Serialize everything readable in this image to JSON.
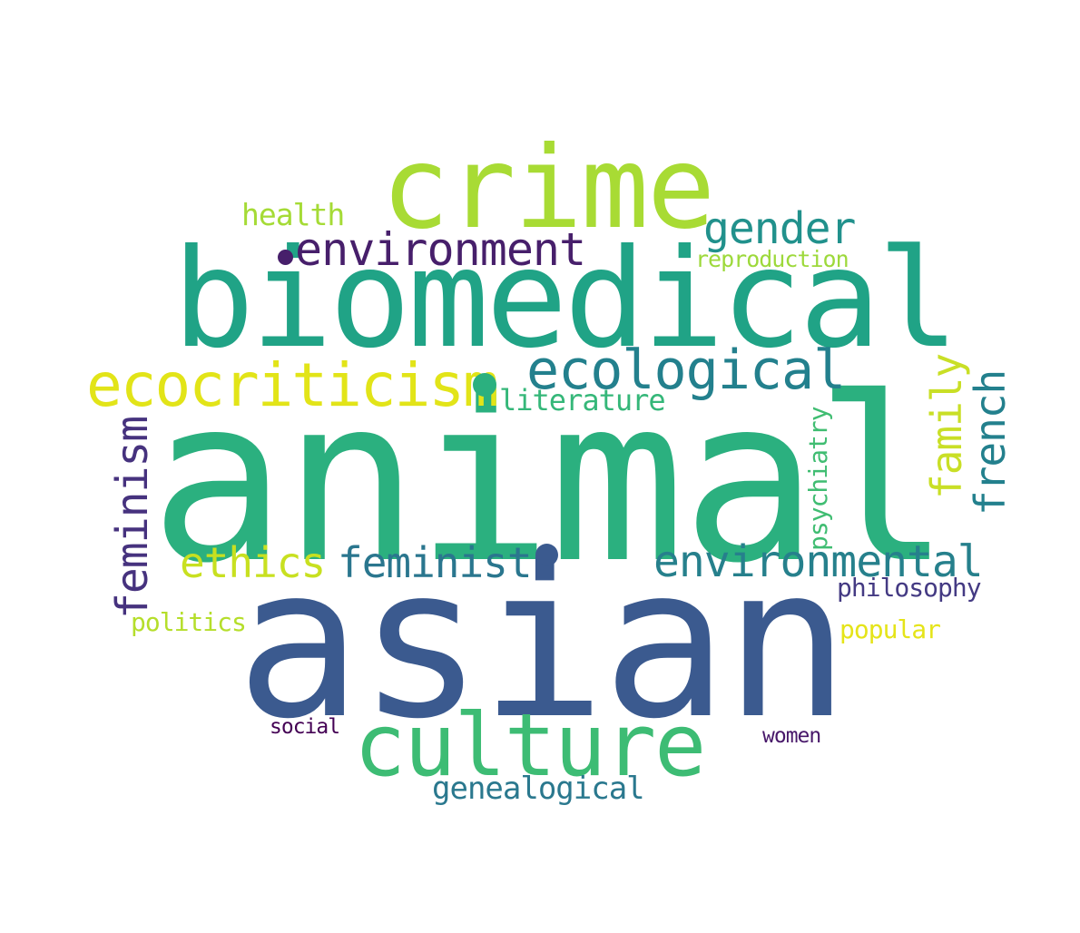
{
  "words": [
    {
      "id": "w-animal",
      "text": "animal",
      "color": "#2bb07f"
    },
    {
      "id": "w-asian",
      "text": "asian",
      "color": "#3b5a8f"
    },
    {
      "id": "w-biomedical",
      "text": "biomedical",
      "color": "#20a386"
    },
    {
      "id": "w-crime",
      "text": "crime",
      "color": "#a8db34"
    },
    {
      "id": "w-culture",
      "text": "culture",
      "color": "#3dbc74"
    },
    {
      "id": "w-ecocriticism",
      "text": "ecocriticism",
      "color": "#e2e418"
    },
    {
      "id": "w-ecological",
      "text": "ecological",
      "color": "#23808d"
    },
    {
      "id": "w-environment",
      "text": "environment",
      "color": "#471f6b"
    },
    {
      "id": "w-gender",
      "text": "gender",
      "color": "#21918c"
    },
    {
      "id": "w-environmental",
      "text": "environmental",
      "color": "#26808c"
    },
    {
      "id": "w-ethics",
      "text": "ethics",
      "color": "#c8e020"
    },
    {
      "id": "w-feminist",
      "text": "feminist",
      "color": "#2a768e"
    },
    {
      "id": "w-feminism",
      "text": "feminism",
      "color": "#46327e"
    },
    {
      "id": "w-french",
      "text": "french",
      "color": "#23808d"
    },
    {
      "id": "w-family",
      "text": "family",
      "color": "#c9df26"
    },
    {
      "id": "w-psychiatry",
      "text": "psychiatry",
      "color": "#40bd72"
    },
    {
      "id": "w-literature",
      "text": "literature",
      "color": "#35b779"
    },
    {
      "id": "w-health",
      "text": "health",
      "color": "#a5db36"
    },
    {
      "id": "w-reproduction",
      "text": "reproduction",
      "color": "#9dd93b"
    },
    {
      "id": "w-philosophy",
      "text": "philosophy",
      "color": "#443a83"
    },
    {
      "id": "w-politics",
      "text": "politics",
      "color": "#b5de2b"
    },
    {
      "id": "w-popular",
      "text": "popular",
      "color": "#e5e419"
    },
    {
      "id": "w-social",
      "text": "social",
      "color": "#440154"
    },
    {
      "id": "w-women",
      "text": "women",
      "color": "#48186a"
    },
    {
      "id": "w-genealogical",
      "text": "genealogical",
      "color": "#2a788e"
    }
  ],
  "dot_colors": {
    "dot-1": "#2bb07f",
    "dot-2": "#3b5a8f",
    "dot-3": "#471f6b"
  }
}
